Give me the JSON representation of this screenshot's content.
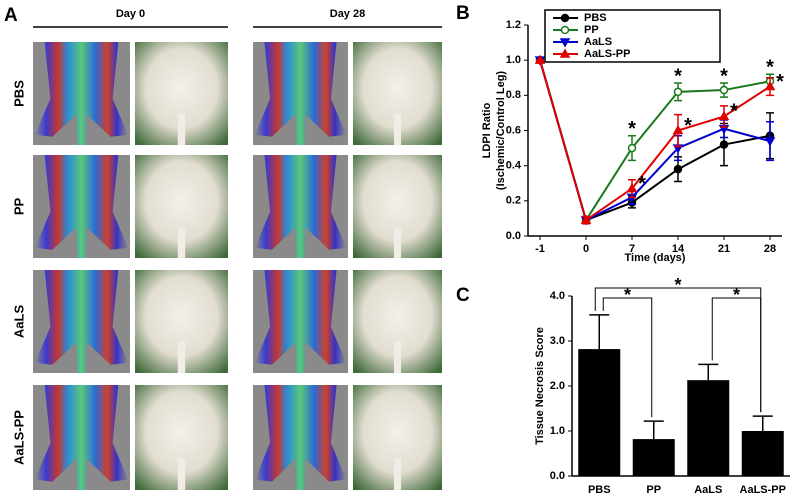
{
  "panel_a": {
    "label": "A",
    "columns": [
      "Day 0",
      "Day 28"
    ],
    "rows": [
      "PBS",
      "PP",
      "AaLS",
      "AaLS-PP"
    ]
  },
  "chart_data": [
    {
      "type": "line",
      "panel_label": "B",
      "ylabel": [
        "LDPI Ratio",
        "(Ischemic/Control Leg)"
      ],
      "xlabel": "Time (days)",
      "categories": [
        "-1",
        "0",
        "7",
        "14",
        "21",
        "28"
      ],
      "ylim": [
        0,
        1.2
      ],
      "yticks": [
        {
          "value": 0,
          "label": "0.0"
        },
        0.2,
        0.4,
        0.6,
        0.8,
        {
          "value": 1,
          "label": "1.0"
        },
        1.2
      ],
      "series": [
        {
          "name": "PBS",
          "color": "#000000",
          "marker": "circle",
          "values": [
            1,
            0.09,
            0.19,
            0.38,
            0.52,
            0.57
          ],
          "errors": [
            0,
            0.02,
            0.03,
            0.07,
            0.12,
            0.13
          ]
        },
        {
          "name": "PP",
          "color": "#1a7a1a",
          "marker": "circle-open",
          "values": [
            1,
            0.09,
            0.5,
            0.82,
            0.83,
            0.88
          ],
          "errors": [
            0,
            0.02,
            0.07,
            0.05,
            0.04,
            0.04
          ]
        },
        {
          "name": "AaLS",
          "color": "#0000cc",
          "marker": "triangle-down",
          "values": [
            1,
            0.09,
            0.22,
            0.5,
            0.61,
            0.54
          ],
          "errors": [
            0,
            0.02,
            0.04,
            0.07,
            0.05,
            0.11
          ]
        },
        {
          "name": "AaLS-PP",
          "color": "#e00000",
          "marker": "triangle-up",
          "values": [
            1,
            0.09,
            0.27,
            0.6,
            0.68,
            0.85
          ],
          "errors": [
            0,
            0.02,
            0.05,
            0.09,
            0.06,
            0.05
          ]
        }
      ],
      "annotations": [
        {
          "text": "*",
          "series": 1,
          "category": 2
        },
        {
          "text": "*",
          "series": 1,
          "category": 3
        },
        {
          "text": "*",
          "series": 1,
          "category": 4
        },
        {
          "text": "*",
          "series": 1,
          "category": 5
        },
        {
          "text": "*",
          "series": 3,
          "category": 2
        },
        {
          "text": "*",
          "series": 3,
          "category": 3
        },
        {
          "text": "*",
          "series": 3,
          "category": 4
        },
        {
          "text": "*",
          "series": 3,
          "category": 5
        }
      ],
      "legend": "top-left"
    },
    {
      "type": "bar",
      "panel_label": "C",
      "ylabel": "Tissue Necrosis Score",
      "categories": [
        "PBS",
        "PP",
        "AaLS",
        "AaLS-PP"
      ],
      "values": [
        2.82,
        0.82,
        2.13,
        1.0
      ],
      "errors": [
        0.76,
        0.4,
        0.35,
        0.33
      ],
      "color": "#000000",
      "ylim": [
        0,
        4
      ],
      "yticks": [
        {
          "value": 0,
          "label": "0.0"
        },
        {
          "value": 1,
          "label": "1.0"
        },
        {
          "value": 2,
          "label": "2.0"
        },
        {
          "value": 3,
          "label": "3.0"
        },
        {
          "value": 4,
          "label": "4.0"
        }
      ],
      "comparisons": [
        {
          "from": 0,
          "to": 1,
          "label": "*"
        },
        {
          "from": 0,
          "to": 3,
          "label": "*"
        },
        {
          "from": 2,
          "to": 3,
          "label": "*"
        }
      ]
    }
  ]
}
